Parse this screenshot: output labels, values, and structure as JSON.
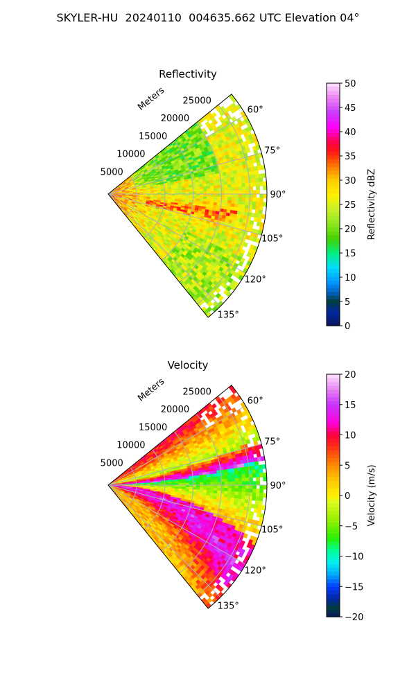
{
  "figure": {
    "suptitle": "SKYLER-HU  20240110  004635.662 UTC Elevation 04°"
  },
  "chart_data": [
    {
      "type": "heatmap",
      "projection": "polar-sector",
      "title": "Reflectivity",
      "radial_label": "Meters",
      "radial_ticks": [
        5000,
        10000,
        15000,
        20000,
        25000
      ],
      "radial_tick_labels": [
        "5000",
        "10000",
        "15000",
        "20000",
        "25000"
      ],
      "rmax": 28000,
      "azimuth_range_deg": [
        51,
        141
      ],
      "azimuth_ticks": [
        60,
        75,
        90,
        105,
        120,
        135
      ],
      "azimuth_tick_labels": [
        "60°",
        "75°",
        "90°",
        "105°",
        "120°",
        "135°"
      ],
      "grid": true,
      "colorbar": {
        "label": "Reflectivity dBZ",
        "range": [
          0,
          50
        ],
        "ticks": [
          0,
          5,
          10,
          15,
          20,
          25,
          30,
          35,
          40,
          45,
          50
        ],
        "tick_labels": [
          "0",
          "5",
          "10",
          "15",
          "20",
          "25",
          "30",
          "35",
          "40",
          "45",
          "50"
        ]
      },
      "field": "reflectivity",
      "value_range_observed": [
        18,
        38
      ]
    },
    {
      "type": "heatmap",
      "projection": "polar-sector",
      "title": "Velocity",
      "radial_label": "Meters",
      "radial_ticks": [
        5000,
        10000,
        15000,
        20000,
        25000
      ],
      "radial_tick_labels": [
        "5000",
        "10000",
        "15000",
        "20000",
        "25000"
      ],
      "rmax": 28000,
      "azimuth_range_deg": [
        51,
        141
      ],
      "azimuth_ticks": [
        60,
        75,
        90,
        105,
        120,
        135
      ],
      "azimuth_tick_labels": [
        "60°",
        "75°",
        "90°",
        "105°",
        "120°",
        "135°"
      ],
      "grid": true,
      "colorbar": {
        "label": "Velocity (m/s)",
        "range": [
          -20,
          20
        ],
        "ticks": [
          -20,
          -15,
          -10,
          -5,
          0,
          5,
          10,
          15,
          20
        ],
        "tick_labels": [
          "−20",
          "−15",
          "−10",
          "−5",
          "0",
          "5",
          "10",
          "15",
          "20"
        ]
      },
      "field": "velocity",
      "value_range_observed": [
        -14,
        18
      ]
    }
  ]
}
